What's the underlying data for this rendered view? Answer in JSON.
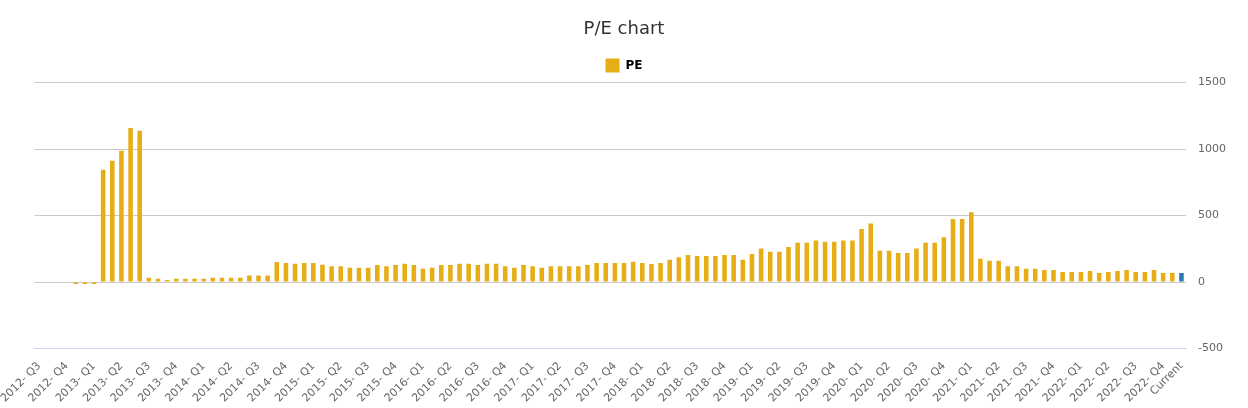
{
  "chart_data": {
    "type": "bar",
    "title": "P/E chart",
    "categories": [
      "2012- Q3",
      null,
      null,
      "2012- Q4",
      null,
      null,
      "2013- Q1",
      null,
      null,
      "2013- Q2",
      null,
      null,
      "2013- Q3",
      null,
      null,
      "2013- Q4",
      null,
      null,
      "2014- Q1",
      null,
      null,
      "2014- Q2",
      null,
      null,
      "2014- Q3",
      null,
      null,
      "2014- Q4",
      null,
      null,
      "2015- Q1",
      null,
      null,
      "2015- Q2",
      null,
      null,
      "2015- Q3",
      null,
      null,
      "2015- Q4",
      null,
      null,
      "2016- Q1",
      null,
      null,
      "2016- Q2",
      null,
      null,
      "2016- Q3",
      null,
      null,
      "2016- Q4",
      null,
      null,
      "2017- Q1",
      null,
      null,
      "2017- Q2",
      null,
      null,
      "2017- Q3",
      null,
      null,
      "2017- Q4",
      null,
      null,
      "2018- Q1",
      null,
      null,
      "2018- Q2",
      null,
      null,
      "2018- Q3",
      null,
      null,
      "2018- Q4",
      null,
      null,
      "2019- Q1",
      null,
      null,
      "2019- Q2",
      null,
      null,
      "2019- Q3",
      null,
      null,
      "2019- Q4",
      null,
      null,
      "2020- Q1",
      null,
      null,
      "2020- Q2",
      null,
      null,
      "2020- Q3",
      null,
      null,
      "2020- Q4",
      null,
      null,
      "2021- Q1",
      null,
      null,
      "2021- Q2",
      null,
      null,
      "2021- Q3",
      null,
      null,
      "2021- Q4",
      null,
      null,
      "2022- Q1",
      null,
      null,
      "2022- Q2",
      null,
      null,
      "2022- Q3",
      null,
      null,
      "2022- Q4",
      null,
      "Current"
    ],
    "series": [
      {
        "name": "PE",
        "color": "#e6ad17",
        "values": [
          0,
          0,
          0,
          0,
          -15,
          -15,
          -15,
          845,
          912,
          988,
          1158,
          1138,
          32,
          25,
          15,
          25,
          25,
          25,
          25,
          32,
          32,
          32,
          32,
          50,
          50,
          50,
          150,
          143,
          138,
          143,
          143,
          130,
          118,
          118,
          108,
          108,
          108,
          128,
          118,
          128,
          138,
          128,
          100,
          108,
          128,
          128,
          138,
          138,
          128,
          138,
          138,
          118,
          108,
          128,
          118,
          108,
          118,
          118,
          118,
          118,
          128,
          143,
          143,
          143,
          143,
          153,
          143,
          135,
          143,
          168,
          186,
          203,
          196,
          196,
          196,
          203,
          203,
          168,
          211,
          253,
          228,
          228,
          263,
          296,
          296,
          313,
          303,
          303,
          313,
          313,
          399,
          441,
          236,
          236,
          218,
          218,
          253,
          296,
          296,
          336,
          474,
          474,
          524,
          175,
          160,
          160,
          118,
          118,
          100,
          100,
          90,
          90,
          75,
          75,
          75,
          83,
          68,
          75,
          83,
          90,
          75,
          75,
          90,
          68,
          68,
          68
        ],
        "colors": [
          "#e6ad17",
          "#e6ad17",
          "#e6ad17",
          "#e6ad17",
          "#e6ad17",
          "#e6ad17",
          "#e6ad17",
          "#e6ad17",
          "#e6ad17",
          "#e6ad17",
          "#e6ad17",
          "#e6ad17",
          "#e6ad17",
          "#e6ad17",
          "#e6ad17",
          "#e6ad17",
          "#e6ad17",
          "#e6ad17",
          "#e6ad17",
          "#e6ad17",
          "#e6ad17",
          "#e6ad17",
          "#e6ad17",
          "#e6ad17",
          "#e6ad17",
          "#e6ad17",
          "#e6ad17",
          "#e6ad17",
          "#e6ad17",
          "#e6ad17",
          "#e6ad17",
          "#e6ad17",
          "#e6ad17",
          "#e6ad17",
          "#e6ad17",
          "#e6ad17",
          "#e6ad17",
          "#e6ad17",
          "#e6ad17",
          "#e6ad17",
          "#e6ad17",
          "#e6ad17",
          "#e6ad17",
          "#e6ad17",
          "#e6ad17",
          "#e6ad17",
          "#e6ad17",
          "#e6ad17",
          "#e6ad17",
          "#e6ad17",
          "#e6ad17",
          "#e6ad17",
          "#e6ad17",
          "#e6ad17",
          "#e6ad17",
          "#e6ad17",
          "#e6ad17",
          "#e6ad17",
          "#e6ad17",
          "#e6ad17",
          "#e6ad17",
          "#e6ad17",
          "#e6ad17",
          "#e6ad17",
          "#e6ad17",
          "#e6ad17",
          "#e6ad17",
          "#e6ad17",
          "#e6ad17",
          "#e6ad17",
          "#e6ad17",
          "#e6ad17",
          "#e6ad17",
          "#e6ad17",
          "#e6ad17",
          "#e6ad17",
          "#e6ad17",
          "#e6ad17",
          "#e6ad17",
          "#e6ad17",
          "#e6ad17",
          "#e6ad17",
          "#e6ad17",
          "#e6ad17",
          "#e6ad17",
          "#e6ad17",
          "#e6ad17",
          "#e6ad17",
          "#e6ad17",
          "#e6ad17",
          "#e6ad17",
          "#e6ad17",
          "#e6ad17",
          "#e6ad17",
          "#e6ad17",
          "#e6ad17",
          "#e6ad17",
          "#e6ad17",
          "#e6ad17",
          "#e6ad17",
          "#e6ad17",
          "#e6ad17",
          "#e6ad17",
          "#e6ad17",
          "#e6ad17",
          "#e6ad17",
          "#e6ad17",
          "#e6ad17",
          "#e6ad17",
          "#e6ad17",
          "#e6ad17",
          "#e6ad17",
          "#e6ad17",
          "#e6ad17",
          "#e6ad17",
          "#e6ad17",
          "#e6ad17",
          "#e6ad17",
          "#e6ad17",
          "#e6ad17",
          "#e6ad17",
          "#e6ad17",
          "#e6ad17",
          "#e6ad17",
          "#e6ad17",
          "#2b7bb9"
        ]
      }
    ],
    "ylim": [
      -500,
      1500
    ],
    "yticks": [
      -500,
      0,
      500,
      1000,
      1500
    ],
    "grid": "y",
    "legend": "top"
  }
}
